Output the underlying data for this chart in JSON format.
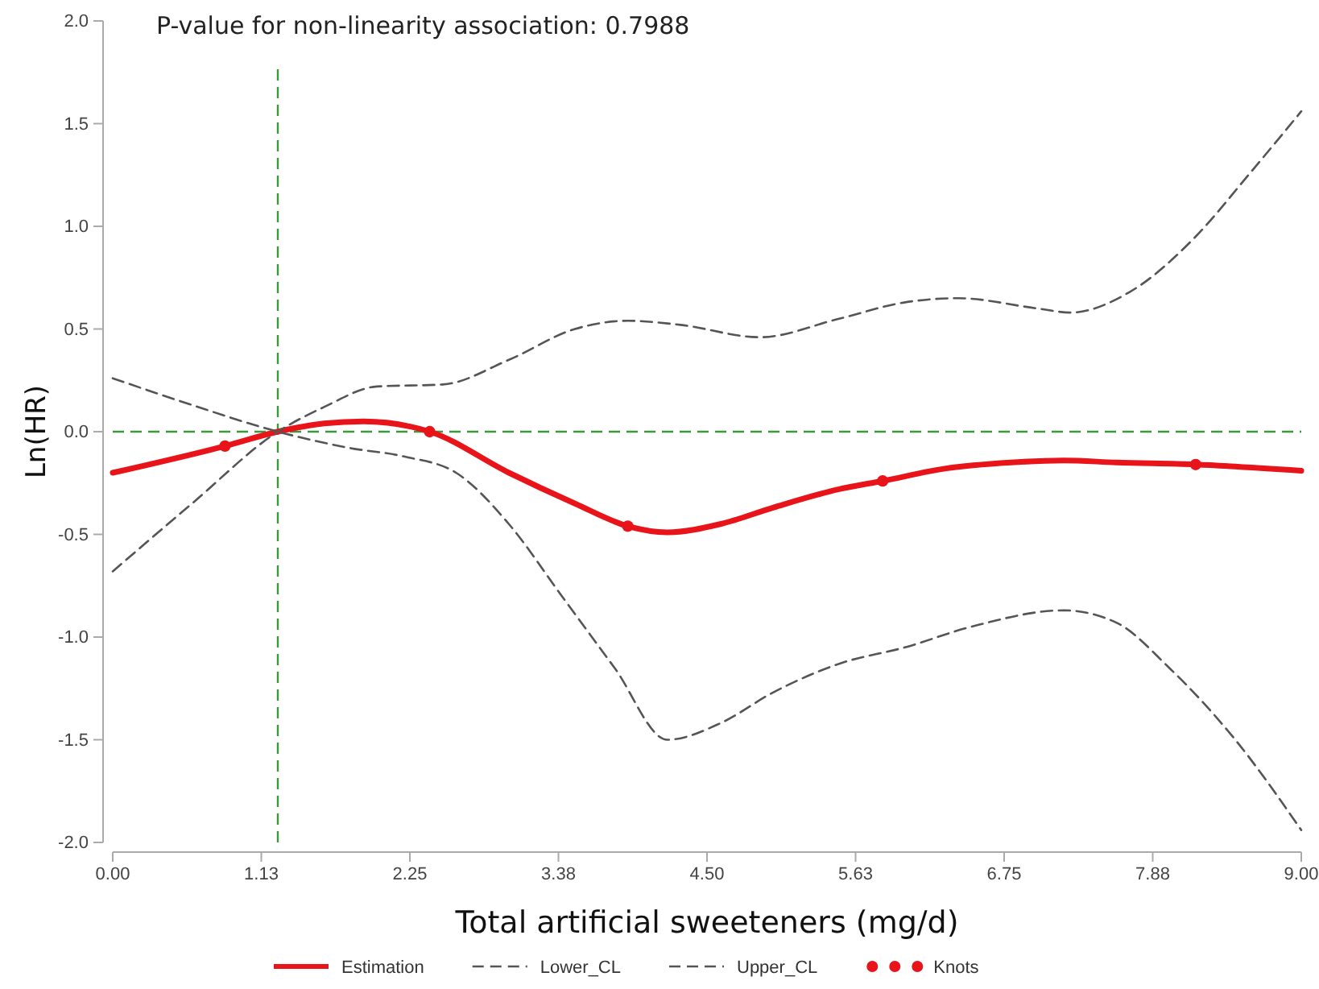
{
  "chart_data": {
    "type": "line",
    "title": "P-value for non-linearity association: 0.7988",
    "xlabel": "Total artificial sweeteners (mg/d)",
    "ylabel": "Ln(HR)",
    "xlim": [
      0,
      9
    ],
    "ylim": [
      -2,
      2
    ],
    "xticks": [
      {
        "value": 0,
        "label": "0.00"
      },
      {
        "value": 1.125,
        "label": "1.13"
      },
      {
        "value": 2.25,
        "label": "2.25"
      },
      {
        "value": 3.375,
        "label": "3.38"
      },
      {
        "value": 4.5,
        "label": "4.50"
      },
      {
        "value": 5.625,
        "label": "5.63"
      },
      {
        "value": 6.75,
        "label": "6.75"
      },
      {
        "value": 7.875,
        "label": "7.88"
      },
      {
        "value": 9,
        "label": "9.00"
      }
    ],
    "yticks": [
      {
        "value": -2,
        "label": "-2.0"
      },
      {
        "value": -1.5,
        "label": "-1.5"
      },
      {
        "value": -1,
        "label": "-1.0"
      },
      {
        "value": -0.5,
        "label": "-0.5"
      },
      {
        "value": 0,
        "label": "0.0"
      },
      {
        "value": 0.5,
        "label": "0.5"
      },
      {
        "value": 1,
        "label": "1.0"
      },
      {
        "value": 1.5,
        "label": "1.5"
      },
      {
        "value": 2,
        "label": "2.0"
      }
    ],
    "grid": false,
    "legend": "bottom",
    "series": [
      {
        "name": "Estimation",
        "color": "#e8141a",
        "line_style": "solid",
        "x": [
          0,
          0.85,
          1.25,
          1.6,
          1.9,
          2.4,
          3.0,
          3.5,
          3.9,
          4.2,
          4.6,
          5.0,
          5.5,
          5.83,
          6.3,
          6.8,
          7.2,
          7.6,
          8.2,
          9.0
        ],
        "values": [
          -0.2,
          -0.07,
          0,
          0.04,
          0.05,
          0,
          -0.2,
          -0.35,
          -0.46,
          -0.49,
          -0.45,
          -0.37,
          -0.28,
          -0.24,
          -0.18,
          -0.15,
          -0.14,
          -0.15,
          -0.16,
          -0.19
        ]
      },
      {
        "name": "Lower_CL",
        "color": "#555555",
        "line_style": "dashed",
        "x": [
          0,
          0.6,
          1.25,
          1.8,
          2.2,
          2.6,
          3.0,
          3.4,
          3.8,
          4.2,
          4.6,
          5.0,
          5.5,
          6.0,
          6.5,
          7.2,
          7.6,
          8.0,
          8.5,
          9.0
        ],
        "values": [
          0.26,
          0.13,
          0,
          -0.08,
          -0.12,
          -0.2,
          -0.45,
          -0.8,
          -1.15,
          -1.5,
          -1.42,
          -1.27,
          -1.13,
          -1.05,
          -0.95,
          -0.87,
          -0.93,
          -1.15,
          -1.5,
          -1.94
        ]
      },
      {
        "name": "Upper_CL",
        "color": "#555555",
        "line_style": "dashed",
        "x": [
          0,
          0.6,
          1.25,
          1.6,
          2.0,
          2.5,
          3.0,
          3.5,
          3.9,
          4.3,
          4.9,
          5.5,
          6.0,
          6.4,
          7.0,
          7.25,
          7.7,
          8.2,
          8.6,
          9.0
        ],
        "values": [
          -0.68,
          -0.35,
          0,
          0.12,
          0.22,
          0.23,
          0.35,
          0.5,
          0.54,
          0.52,
          0.46,
          0.55,
          0.63,
          0.65,
          0.6,
          0.58,
          0.68,
          0.95,
          1.25,
          1.56
        ]
      },
      {
        "name": "Knots",
        "type": "scatter",
        "marker": "circle",
        "color": "#e8141a",
        "x": [
          0.85,
          2.4,
          3.9,
          5.83,
          8.2
        ],
        "values": [
          -0.07,
          0,
          -0.46,
          -0.24,
          -0.16
        ]
      }
    ],
    "ref_lines": [
      {
        "axis": "y",
        "value": 0,
        "color": "#3a9a3a",
        "line_style": "dashed"
      },
      {
        "axis": "x",
        "value": 1.25,
        "color": "#3a9a3a",
        "line_style": "dashed"
      }
    ]
  }
}
